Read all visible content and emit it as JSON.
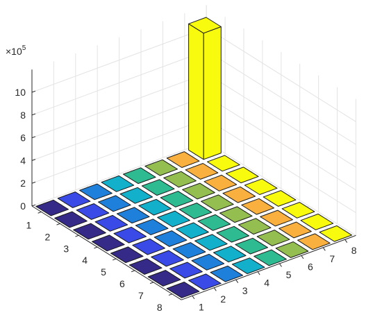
{
  "chart_data": {
    "type": "bar3",
    "exponent_label": "×10",
    "exponent_power": "5",
    "x_ticks": [
      "1",
      "2",
      "3",
      "4",
      "5",
      "6",
      "7",
      "8"
    ],
    "y_ticks": [
      "1",
      "2",
      "3",
      "4",
      "5",
      "6",
      "7",
      "8"
    ],
    "z_ticks": [
      "0",
      "2",
      "4",
      "6",
      "8",
      "10"
    ],
    "zlim": [
      0,
      12
    ],
    "grid": true,
    "colormap": "parula",
    "description_of_values": "8x8 grid of bar heights (units of 10^5); only (x=8, y=1) is tall",
    "values": [
      [
        0,
        0,
        0,
        0,
        0,
        0,
        0,
        11.1
      ],
      [
        0,
        0,
        0,
        0,
        0,
        0,
        0,
        0
      ],
      [
        0,
        0,
        0,
        0,
        0,
        0,
        0,
        0
      ],
      [
        0,
        0,
        0,
        0,
        0,
        0,
        0,
        0
      ],
      [
        0,
        0,
        0,
        0,
        0,
        0,
        0,
        0
      ],
      [
        0,
        0,
        0,
        0,
        0,
        0,
        0,
        0
      ],
      [
        0,
        0,
        0,
        0,
        0,
        0,
        0,
        0
      ],
      [
        0,
        0,
        0,
        0,
        0,
        0,
        0,
        0
      ]
    ]
  }
}
